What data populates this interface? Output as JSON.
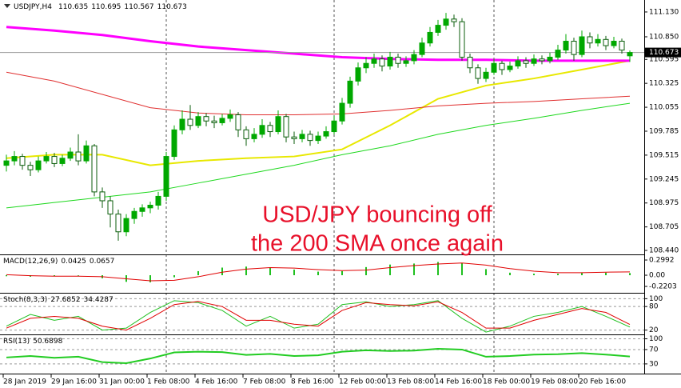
{
  "chart_data": {
    "type": "candlestick",
    "title": "USDJPY,H4",
    "up_color": "#00a800",
    "down_color": "#0b5e0b",
    "ylim": [
      108.395,
      111.265
    ],
    "yticks": [
      {
        "value": 111.13,
        "label": "111.130"
      },
      {
        "value": 110.85,
        "label": "110.850"
      },
      110.595,
      110.325,
      110.055,
      109.785,
      109.515,
      109.245,
      108.975,
      108.705,
      {
        "value": 108.44,
        "label": "108.440"
      }
    ],
    "last_price": 110.673,
    "annotation": [
      "USD/JPY bouncing off",
      "the 200 SMA once again"
    ],
    "x_labels": [
      "28 Jan 2019",
      "29 Jan 16:00",
      "31 Jan 00:00",
      "1 Feb 08:00",
      "4 Feb 16:00",
      "7 Feb 08:00",
      "8 Feb 16:00",
      "12 Feb 00:00",
      "13 Feb 08:00",
      "14 Feb 16:00",
      "18 Feb 00:00",
      "19 Feb 08:00",
      "20 Feb 16:00"
    ],
    "x_label_index": [
      0,
      6,
      12,
      18,
      24,
      30,
      36,
      42,
      48,
      54,
      60,
      66,
      72
    ],
    "candles": [
      [
        109.4,
        109.52,
        109.33,
        109.45
      ],
      [
        109.45,
        109.56,
        109.4,
        109.5
      ],
      [
        109.5,
        109.53,
        109.35,
        109.4
      ],
      [
        109.4,
        109.44,
        109.28,
        109.35
      ],
      [
        109.35,
        109.5,
        109.32,
        109.45
      ],
      [
        109.45,
        109.55,
        109.42,
        109.5
      ],
      [
        109.5,
        109.54,
        109.38,
        109.42
      ],
      [
        109.42,
        109.52,
        109.39,
        109.48
      ],
      [
        109.48,
        109.6,
        109.45,
        109.55
      ],
      [
        109.55,
        109.75,
        109.4,
        109.45
      ],
      [
        109.45,
        109.68,
        109.42,
        109.62
      ],
      [
        109.62,
        109.64,
        109.05,
        109.1
      ],
      [
        109.1,
        109.15,
        108.92,
        109.0
      ],
      [
        109.0,
        109.05,
        108.7,
        108.85
      ],
      [
        108.85,
        108.9,
        108.55,
        108.65
      ],
      [
        108.65,
        108.85,
        108.6,
        108.8
      ],
      [
        108.8,
        108.92,
        108.74,
        108.88
      ],
      [
        108.88,
        108.96,
        108.82,
        108.92
      ],
      [
        108.92,
        108.99,
        108.86,
        108.95
      ],
      [
        108.95,
        109.1,
        108.9,
        109.05
      ],
      [
        109.05,
        109.55,
        109.0,
        109.5
      ],
      [
        109.5,
        109.85,
        109.46,
        109.8
      ],
      [
        109.8,
        110.02,
        109.75,
        109.92
      ],
      [
        109.92,
        110.08,
        109.8,
        109.85
      ],
      [
        109.85,
        110.0,
        109.82,
        109.95
      ],
      [
        109.95,
        109.99,
        109.84,
        109.9
      ],
      [
        109.9,
        109.96,
        109.82,
        109.88
      ],
      [
        109.88,
        109.98,
        109.85,
        109.93
      ],
      [
        109.93,
        110.03,
        109.89,
        109.97
      ],
      [
        109.97,
        110.0,
        109.72,
        109.8
      ],
      [
        109.8,
        109.84,
        109.62,
        109.7
      ],
      [
        109.7,
        109.82,
        109.66,
        109.75
      ],
      [
        109.75,
        109.92,
        109.71,
        109.85
      ],
      [
        109.85,
        109.89,
        109.72,
        109.78
      ],
      [
        109.78,
        110.02,
        109.75,
        109.95
      ],
      [
        109.95,
        109.98,
        109.66,
        109.72
      ],
      [
        109.72,
        109.78,
        109.64,
        109.7
      ],
      [
        109.7,
        109.8,
        109.66,
        109.75
      ],
      [
        109.75,
        109.79,
        109.62,
        109.68
      ],
      [
        109.68,
        109.78,
        109.64,
        109.73
      ],
      [
        109.73,
        109.84,
        109.7,
        109.78
      ],
      [
        109.78,
        109.96,
        109.75,
        109.9
      ],
      [
        109.9,
        110.16,
        109.86,
        110.1
      ],
      [
        110.1,
        110.4,
        110.05,
        110.35
      ],
      [
        110.35,
        110.56,
        110.3,
        110.5
      ],
      [
        110.5,
        110.62,
        110.44,
        110.55
      ],
      [
        110.55,
        110.66,
        110.5,
        110.6
      ],
      [
        110.6,
        110.64,
        110.46,
        110.52
      ],
      [
        110.52,
        110.68,
        110.48,
        110.62
      ],
      [
        110.62,
        110.66,
        110.5,
        110.55
      ],
      [
        110.55,
        110.63,
        110.51,
        110.58
      ],
      [
        110.58,
        110.7,
        110.54,
        110.65
      ],
      [
        110.65,
        110.84,
        110.62,
        110.78
      ],
      [
        110.78,
        110.96,
        110.74,
        110.9
      ],
      [
        110.9,
        111.04,
        110.86,
        110.98
      ],
      [
        110.98,
        111.12,
        110.93,
        111.05
      ],
      [
        111.05,
        111.1,
        110.96,
        111.02
      ],
      [
        111.02,
        111.06,
        110.58,
        110.62
      ],
      [
        110.62,
        110.66,
        110.44,
        110.5
      ],
      [
        110.5,
        110.54,
        110.32,
        110.38
      ],
      [
        110.38,
        110.5,
        110.34,
        110.45
      ],
      [
        110.45,
        110.6,
        110.42,
        110.55
      ],
      [
        110.55,
        110.58,
        110.42,
        110.48
      ],
      [
        110.48,
        110.57,
        110.45,
        110.52
      ],
      [
        110.52,
        110.63,
        110.49,
        110.58
      ],
      [
        110.58,
        110.62,
        110.5,
        110.55
      ],
      [
        110.55,
        110.65,
        110.52,
        110.6
      ],
      [
        110.6,
        110.64,
        110.54,
        110.58
      ],
      [
        110.58,
        110.67,
        110.55,
        110.62
      ],
      [
        110.62,
        110.76,
        110.59,
        110.7
      ],
      [
        110.7,
        110.88,
        110.66,
        110.8
      ],
      [
        110.8,
        110.84,
        110.58,
        110.65
      ],
      [
        110.65,
        110.92,
        110.62,
        110.85
      ],
      [
        110.85,
        110.9,
        110.72,
        110.78
      ],
      [
        110.78,
        110.88,
        110.74,
        110.82
      ],
      [
        110.82,
        110.86,
        110.7,
        110.75
      ],
      [
        110.75,
        110.85,
        110.72,
        110.8
      ],
      [
        110.8,
        110.83,
        110.66,
        110.7
      ],
      [
        110.635,
        110.695,
        110.567,
        110.673
      ]
    ],
    "overlays": {
      "x": [
        0,
        6,
        12,
        18,
        24,
        30,
        36,
        42,
        48,
        54,
        60,
        66,
        72,
        78
      ],
      "series": [
        {
          "color": "#1ed81e",
          "width": 1,
          "values": [
            108.92,
            108.98,
            109.04,
            109.1,
            109.2,
            109.3,
            109.4,
            109.52,
            109.62,
            109.75,
            109.85,
            109.93,
            110.02,
            110.1
          ]
        },
        {
          "color": "#e8e800",
          "width": 2,
          "values": [
            109.48,
            109.52,
            109.52,
            109.4,
            109.45,
            109.48,
            109.5,
            109.58,
            109.85,
            110.15,
            110.3,
            110.38,
            110.48,
            110.58
          ]
        },
        {
          "color": "#e03030",
          "width": 1,
          "values": [
            110.45,
            110.35,
            110.2,
            110.05,
            109.99,
            109.97,
            109.97,
            109.98,
            110.02,
            110.07,
            110.1,
            110.12,
            110.15,
            110.18
          ]
        },
        {
          "color": "#ff00ff",
          "width": 3,
          "values": [
            110.96,
            110.92,
            110.87,
            110.8,
            110.74,
            110.7,
            110.66,
            110.62,
            110.6,
            110.59,
            110.59,
            110.58,
            110.58,
            110.58
          ]
        }
      ]
    },
    "panels": [
      {
        "title": "MACD(12,26,9)",
        "ylim": [
          -0.346,
          0.394
        ],
        "grid": false,
        "yticks": [
          0.2992,
          {
            "value": 0,
            "label": "0.00"
          },
          -0.2203
        ],
        "x": [
          0,
          3,
          6,
          9,
          12,
          15,
          18,
          21,
          24,
          27,
          30,
          33,
          36,
          39,
          42,
          45,
          48,
          51,
          54,
          57,
          60,
          63,
          66,
          69,
          72,
          75,
          78
        ],
        "series": [
          {
            "kind": "bar",
            "color": "#20c020",
            "values": [
              -0.02,
              -0.03,
              -0.02,
              -0.01,
              -0.06,
              -0.13,
              -0.14,
              -0.04,
              0.08,
              0.15,
              0.17,
              0.15,
              0.11,
              0.07,
              0.08,
              0.16,
              0.21,
              0.23,
              0.26,
              0.24,
              0.12,
              0.05,
              0.03,
              0.03,
              0.05,
              0.05,
              0.0425
            ]
          },
          {
            "kind": "line",
            "color": "#e00000",
            "values": [
              0.01,
              -0.01,
              -0.02,
              -0.02,
              -0.03,
              -0.07,
              -0.11,
              -0.1,
              -0.03,
              0.06,
              0.12,
              0.15,
              0.14,
              0.11,
              0.09,
              0.1,
              0.15,
              0.19,
              0.22,
              0.24,
              0.2,
              0.13,
              0.08,
              0.05,
              0.05,
              0.06,
              0.0657
            ]
          }
        ]
      },
      {
        "title": "Stoch(8,3,3)",
        "ylim": [
          9,
          113
        ],
        "grid": true,
        "yticks": [
          100,
          80,
          20
        ],
        "x": [
          0,
          3,
          6,
          9,
          12,
          15,
          18,
          21,
          24,
          27,
          30,
          33,
          36,
          39,
          42,
          45,
          48,
          51,
          54,
          57,
          60,
          63,
          66,
          69,
          72,
          75,
          78
        ],
        "series": [
          {
            "kind": "line",
            "color": "#20c020",
            "values": [
              30,
              60,
              45,
              55,
              20,
              25,
              65,
              95,
              90,
              70,
              30,
              55,
              25,
              35,
              85,
              92,
              80,
              85,
              95,
              50,
              15,
              30,
              55,
              65,
              80,
              55,
              27.6852
            ]
          },
          {
            "kind": "line",
            "color": "#e00000",
            "values": [
              25,
              50,
              55,
              50,
              30,
              20,
              50,
              85,
              93,
              80,
              45,
              45,
              35,
              30,
              70,
              90,
              85,
              82,
              92,
              65,
              25,
              25,
              45,
              60,
              75,
              65,
              34.4287
            ]
          }
        ]
      },
      {
        "title": "RSI(13)",
        "ylim": [
          3,
          110
        ],
        "grid": true,
        "yticks": [
          100,
          70,
          30
        ],
        "x": [
          0,
          3,
          6,
          9,
          12,
          15,
          18,
          21,
          24,
          27,
          30,
          33,
          36,
          39,
          42,
          45,
          48,
          51,
          54,
          57,
          60,
          63,
          66,
          69,
          72,
          75,
          78
        ],
        "series": [
          {
            "kind": "line",
            "color": "#22cc22",
            "width": 2,
            "values": [
              48,
              52,
              47,
              50,
              35,
              32,
              45,
              62,
              64,
              63,
              55,
              58,
              52,
              54,
              64,
              68,
              66,
              67,
              72,
              70,
              50,
              52,
              56,
              57,
              60,
              56,
              50.6898
            ]
          }
        ]
      }
    ]
  }
}
